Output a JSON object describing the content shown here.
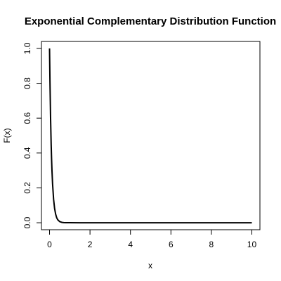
{
  "chart_data": {
    "type": "line",
    "title": "Exponential Complementary Distribution Function",
    "xlabel": "x",
    "ylabel": "F(x)",
    "xlim": [
      -0.4,
      10.4
    ],
    "ylim": [
      -0.04,
      1.04
    ],
    "xticks": [
      0,
      2,
      4,
      6,
      8,
      10
    ],
    "yticks": [
      0.0,
      0.2,
      0.4,
      0.6,
      0.8,
      1.0
    ],
    "xtick_labels": [
      "0",
      "2",
      "4",
      "6",
      "8",
      "10"
    ],
    "ytick_labels": [
      "0.0",
      "0.2",
      "0.4",
      "0.6",
      "0.8",
      "1.0"
    ],
    "grid": false,
    "series": [
      {
        "color": "#000000",
        "x": [
          0,
          0.02,
          0.05,
          0.08,
          0.1,
          0.12,
          0.15,
          0.2,
          0.25,
          0.3,
          0.35,
          0.4,
          0.5,
          0.6,
          0.7,
          0.8,
          1.0,
          1.5,
          2,
          3,
          4,
          5,
          6,
          7,
          8,
          9,
          10
        ],
        "y": [
          1.0,
          0.819,
          0.607,
          0.449,
          0.368,
          0.301,
          0.223,
          0.135,
          0.082,
          0.05,
          0.03,
          0.018,
          0.0067,
          0.0025,
          0.0009,
          0.0003,
          5e-05,
          0,
          0,
          0,
          0,
          0,
          0,
          0,
          0,
          0,
          0
        ]
      }
    ]
  }
}
